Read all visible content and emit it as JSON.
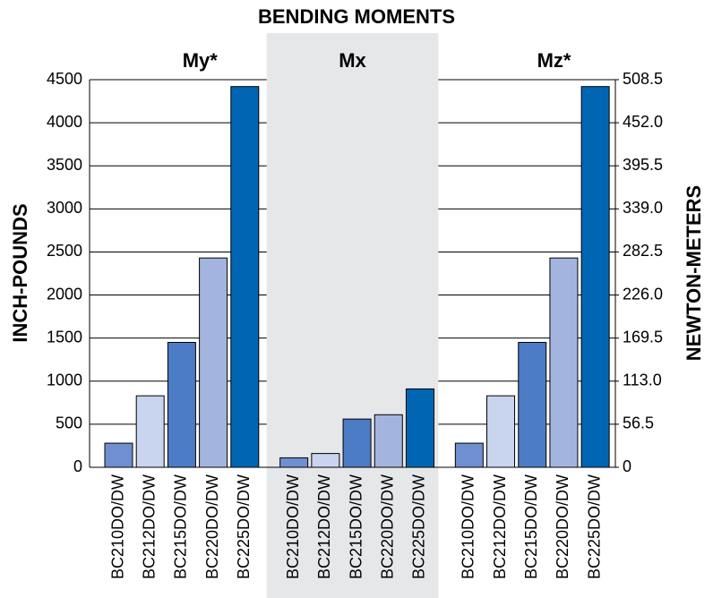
{
  "chart_data": {
    "type": "bar",
    "title": "BENDING MOMENTS",
    "y_label": "INCH-POUNDS",
    "y2_label": "NEWTON-METERS",
    "categories": [
      "BC210DO/DW",
      "BC212DO/DW",
      "BC215DO/DW",
      "BC220DO/DW",
      "BC225DO/DW"
    ],
    "colors": [
      "#6f8fd1",
      "#c9d5ef",
      "#4d7cc6",
      "#a3b5df",
      "#0066b3"
    ],
    "series": [
      {
        "name": "My*",
        "values": [
          280,
          830,
          1450,
          2430,
          4420
        ]
      },
      {
        "name": "Mx",
        "values": [
          110,
          160,
          560,
          610,
          910
        ]
      },
      {
        "name": "Mz*",
        "values": [
          280,
          830,
          1450,
          2430,
          4420
        ]
      }
    ],
    "ylim": [
      0,
      4500
    ],
    "yticks": [
      0,
      500,
      1000,
      1500,
      2000,
      2500,
      3000,
      3500,
      4000,
      4500
    ],
    "y2lim": [
      0,
      508.5
    ],
    "y2ticks": [
      0,
      56.5,
      {
        "value": 113,
        "label": "113.0"
      },
      169.5,
      {
        "value": 226,
        "label": "226.0"
      },
      282.5,
      {
        "value": 339,
        "label": "339.0"
      },
      395.5,
      {
        "value": 452,
        "label": "452.0"
      },
      508.5
    ],
    "grid": true
  }
}
